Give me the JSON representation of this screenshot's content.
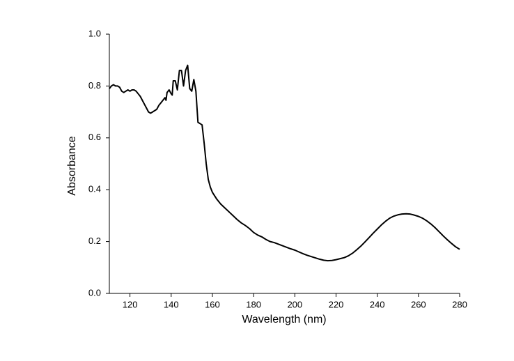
{
  "chart_data": {
    "type": "line",
    "x_label": "Wavelength (nm)",
    "y_label": "Absorbance",
    "xlim": [
      110,
      280
    ],
    "ylim": [
      0,
      1
    ],
    "xticks": [
      120,
      140,
      160,
      180,
      200,
      220,
      240,
      260,
      280
    ],
    "yticks": [
      {
        "value": 0,
        "label": "0.0"
      },
      0.2,
      0.4,
      0.6,
      0.8,
      {
        "value": 1,
        "label": "1.0"
      }
    ],
    "x": [
      110,
      111,
      112,
      113,
      114,
      115,
      116,
      117,
      118,
      119,
      120,
      121,
      122,
      123,
      124,
      125,
      126,
      127,
      128,
      129,
      130,
      131,
      132,
      133,
      134,
      135,
      136,
      137,
      137.5,
      138,
      139,
      140,
      140.5,
      141,
      142,
      143,
      144,
      145,
      146,
      147,
      148,
      149,
      150,
      151,
      152,
      153,
      154,
      155,
      156,
      157,
      158,
      159,
      160,
      162,
      164,
      166,
      168,
      170,
      172,
      174,
      176,
      178,
      180,
      182,
      184,
      186,
      188,
      190,
      192,
      194,
      196,
      198,
      200,
      202,
      204,
      206,
      208,
      210,
      212,
      214,
      216,
      218,
      220,
      222,
      224,
      226,
      228,
      230,
      232,
      234,
      236,
      238,
      240,
      242,
      244,
      246,
      248,
      250,
      252,
      254,
      256,
      258,
      260,
      262,
      264,
      266,
      268,
      270,
      272,
      274,
      276,
      278,
      280
    ],
    "series": [
      {
        "name": "Absorbance",
        "color": "#000000",
        "values": [
          0.79,
          0.8,
          0.805,
          0.8,
          0.8,
          0.795,
          0.78,
          0.775,
          0.78,
          0.785,
          0.78,
          0.785,
          0.785,
          0.78,
          0.77,
          0.76,
          0.745,
          0.73,
          0.715,
          0.7,
          0.695,
          0.7,
          0.705,
          0.71,
          0.725,
          0.735,
          0.745,
          0.755,
          0.745,
          0.775,
          0.785,
          0.77,
          0.765,
          0.82,
          0.82,
          0.785,
          0.86,
          0.86,
          0.8,
          0.86,
          0.88,
          0.79,
          0.78,
          0.825,
          0.78,
          0.66,
          0.655,
          0.65,
          0.58,
          0.5,
          0.44,
          0.41,
          0.39,
          0.365,
          0.345,
          0.33,
          0.315,
          0.3,
          0.285,
          0.272,
          0.262,
          0.25,
          0.235,
          0.225,
          0.218,
          0.208,
          0.2,
          0.196,
          0.19,
          0.184,
          0.178,
          0.172,
          0.167,
          0.16,
          0.153,
          0.147,
          0.142,
          0.137,
          0.132,
          0.128,
          0.126,
          0.127,
          0.13,
          0.134,
          0.138,
          0.145,
          0.155,
          0.168,
          0.182,
          0.198,
          0.215,
          0.232,
          0.248,
          0.264,
          0.278,
          0.29,
          0.298,
          0.303,
          0.306,
          0.307,
          0.306,
          0.302,
          0.297,
          0.29,
          0.28,
          0.268,
          0.254,
          0.238,
          0.222,
          0.207,
          0.193,
          0.18,
          0.17
        ]
      }
    ]
  }
}
